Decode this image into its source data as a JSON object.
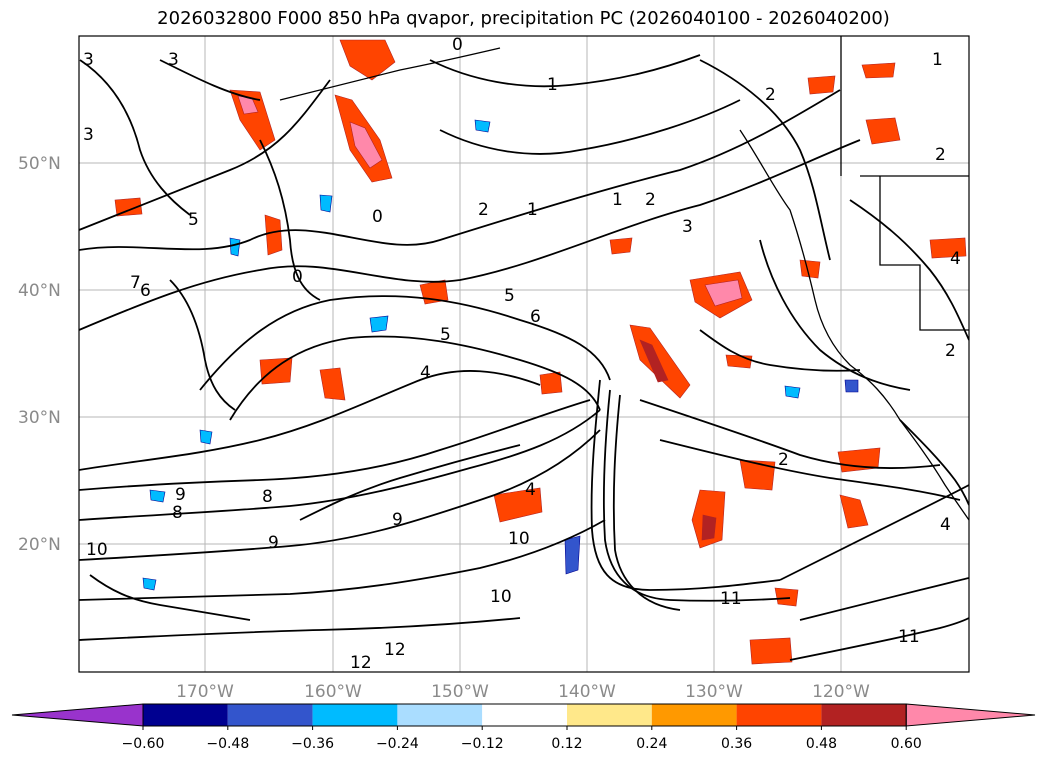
{
  "title": "2026032800 F000 850 hPa qvapor, precipitation PC (2026040100 - 2026040200)",
  "lat_labels": [
    "50°N",
    "40°N",
    "30°N",
    "20°N"
  ],
  "lon_labels": [
    "170°W",
    "160°W",
    "150°W",
    "140°W",
    "130°W",
    "120°W"
  ],
  "colorbar": {
    "ticks": [
      "−0.60",
      "−0.48",
      "−0.36",
      "−0.24",
      "−0.12",
      "0.12",
      "0.24",
      "0.36",
      "0.48",
      "0.60"
    ],
    "colors": [
      "#9933cc",
      "#000090",
      "#3355cc",
      "#00bbff",
      "#aaddff",
      "#ffffff",
      "#ffe88a",
      "#ff9900",
      "#ff4400",
      "#b22222",
      "#ff88aa"
    ]
  },
  "contour_labels": [
    "1",
    "1",
    "1",
    "1",
    "2",
    "2",
    "2",
    "2",
    "2",
    "2",
    "3",
    "3",
    "3",
    "3",
    "4",
    "4",
    "4",
    "4",
    "5",
    "5",
    "5",
    "6",
    "6",
    "7",
    "8",
    "8",
    "9",
    "9",
    "9",
    "10",
    "10",
    "10",
    "11",
    "11",
    "12",
    "12",
    "0",
    "0",
    "0"
  ],
  "colors": {
    "contour": "#000000",
    "grid": "#999999",
    "coast": "#000000"
  }
}
